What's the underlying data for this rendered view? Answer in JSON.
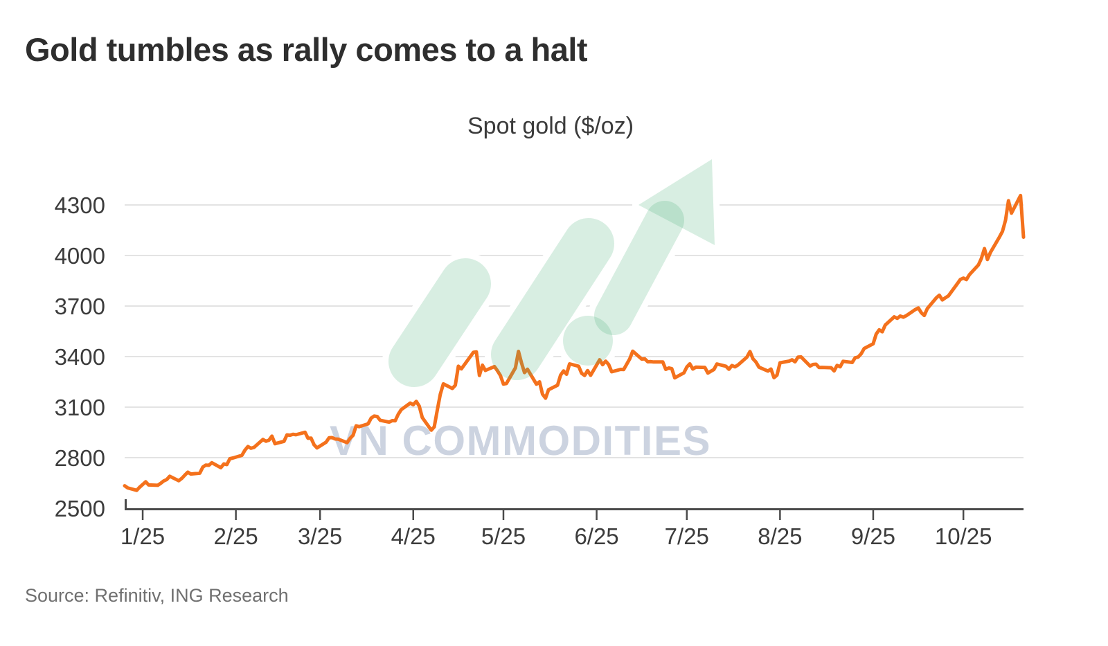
{
  "header": {
    "title": "Gold tumbles as rally comes to a halt"
  },
  "chart": {
    "subtitle": "Spot gold ($/oz)",
    "source": "Source: Refinitiv, ING Research",
    "watermark_text": "VN COMMODITIES",
    "watermark_logo": "rising-trend-arrow-icon",
    "colors": {
      "line": "#f4711c",
      "gridline": "#e3e3e3",
      "axis": "#4a4a4a",
      "axis_label": "#3c3c3c",
      "title_text": "#2e2e2e",
      "subtitle_text": "#3b3b3b",
      "source_text": "#707070",
      "watermark_text_color": "#ccd3e0",
      "watermark_green_rgba": "rgba(78,178,123,0.22)",
      "background": "#ffffff"
    }
  },
  "chart_data": {
    "type": "line",
    "title": "Spot gold ($/oz)",
    "series_name": "Spot gold",
    "unit": "$/oz",
    "x_tick_labels": [
      "1/25",
      "2/25",
      "3/25",
      "4/25",
      "5/25",
      "6/25",
      "7/25",
      "8/25",
      "9/25",
      "10/25"
    ],
    "x_tick_days": [
      6,
      37,
      65,
      96,
      126,
      157,
      187,
      218,
      249,
      279
    ],
    "xlim_days": [
      0,
      299
    ],
    "y_ticks": [
      2500,
      2800,
      3100,
      3400,
      3700,
      4000,
      4300
    ],
    "ylim": [
      2500,
      4300
    ],
    "grid": "horizontal-only",
    "legend": "none",
    "points": [
      [
        0,
        2633
      ],
      [
        1,
        2621
      ],
      [
        4,
        2606
      ],
      [
        5,
        2625
      ],
      [
        7,
        2657
      ],
      [
        8,
        2638
      ],
      [
        11,
        2636
      ],
      [
        12,
        2648
      ],
      [
        13,
        2662
      ],
      [
        14,
        2670
      ],
      [
        15,
        2690
      ],
      [
        18,
        2663
      ],
      [
        19,
        2677
      ],
      [
        20,
        2696
      ],
      [
        21,
        2714
      ],
      [
        22,
        2703
      ],
      [
        25,
        2708
      ],
      [
        26,
        2744
      ],
      [
        27,
        2756
      ],
      [
        28,
        2755
      ],
      [
        29,
        2770
      ],
      [
        32,
        2741
      ],
      [
        33,
        2763
      ],
      [
        34,
        2759
      ],
      [
        35,
        2794
      ],
      [
        36,
        2798
      ],
      [
        39,
        2814
      ],
      [
        40,
        2844
      ],
      [
        41,
        2866
      ],
      [
        42,
        2856
      ],
      [
        43,
        2861
      ],
      [
        46,
        2908
      ],
      [
        47,
        2898
      ],
      [
        48,
        2904
      ],
      [
        49,
        2928
      ],
      [
        50,
        2883
      ],
      [
        53,
        2897
      ],
      [
        54,
        2935
      ],
      [
        55,
        2933
      ],
      [
        56,
        2939
      ],
      [
        57,
        2936
      ],
      [
        60,
        2951
      ],
      [
        61,
        2915
      ],
      [
        62,
        2916
      ],
      [
        63,
        2877
      ],
      [
        64,
        2858
      ],
      [
        67,
        2892
      ],
      [
        68,
        2918
      ],
      [
        69,
        2919
      ],
      [
        70,
        2911
      ],
      [
        71,
        2910
      ],
      [
        74,
        2889
      ],
      [
        75,
        2915
      ],
      [
        76,
        2933
      ],
      [
        77,
        2989
      ],
      [
        78,
        2984
      ],
      [
        81,
        3001
      ],
      [
        82,
        3035
      ],
      [
        83,
        3047
      ],
      [
        84,
        3044
      ],
      [
        85,
        3022
      ],
      [
        88,
        3011
      ],
      [
        89,
        3020
      ],
      [
        90,
        3019
      ],
      [
        91,
        3057
      ],
      [
        92,
        3085
      ],
      [
        95,
        3124
      ],
      [
        96,
        3114
      ],
      [
        97,
        3134
      ],
      [
        98,
        3106
      ],
      [
        99,
        3038
      ],
      [
        102,
        2963
      ],
      [
        103,
        2983
      ],
      [
        104,
        3083
      ],
      [
        105,
        3176
      ],
      [
        106,
        3238
      ],
      [
        109,
        3211
      ],
      [
        110,
        3230
      ],
      [
        111,
        3343
      ],
      [
        112,
        3327
      ],
      [
        116,
        3425
      ],
      [
        117,
        3428
      ],
      [
        118,
        3288
      ],
      [
        119,
        3349
      ],
      [
        120,
        3318
      ],
      [
        123,
        3341
      ],
      [
        124,
        3316
      ],
      [
        125,
        3288
      ],
      [
        126,
        3237
      ],
      [
        127,
        3240
      ],
      [
        130,
        3333
      ],
      [
        131,
        3431
      ],
      [
        132,
        3364
      ],
      [
        133,
        3305
      ],
      [
        134,
        3325
      ],
      [
        137,
        3236
      ],
      [
        138,
        3250
      ],
      [
        139,
        3177
      ],
      [
        140,
        3153
      ],
      [
        141,
        3203
      ],
      [
        144,
        3230
      ],
      [
        145,
        3290
      ],
      [
        146,
        3315
      ],
      [
        147,
        3295
      ],
      [
        148,
        3357
      ],
      [
        151,
        3343
      ],
      [
        152,
        3301
      ],
      [
        153,
        3288
      ],
      [
        154,
        3317
      ],
      [
        155,
        3289
      ],
      [
        158,
        3381
      ],
      [
        159,
        3352
      ],
      [
        160,
        3373
      ],
      [
        161,
        3353
      ],
      [
        162,
        3310
      ],
      [
        165,
        3324
      ],
      [
        166,
        3323
      ],
      [
        167,
        3355
      ],
      [
        168,
        3386
      ],
      [
        169,
        3432
      ],
      [
        172,
        3385
      ],
      [
        173,
        3387
      ],
      [
        174,
        3369
      ],
      [
        175,
        3370
      ],
      [
        176,
        3368
      ],
      [
        179,
        3368
      ],
      [
        180,
        3324
      ],
      [
        181,
        3332
      ],
      [
        182,
        3328
      ],
      [
        183,
        3274
      ],
      [
        186,
        3303
      ],
      [
        187,
        3338
      ],
      [
        188,
        3357
      ],
      [
        189,
        3326
      ],
      [
        190,
        3337
      ],
      [
        193,
        3336
      ],
      [
        194,
        3302
      ],
      [
        195,
        3313
      ],
      [
        196,
        3323
      ],
      [
        197,
        3356
      ],
      [
        200,
        3343
      ],
      [
        201,
        3325
      ],
      [
        202,
        3347
      ],
      [
        203,
        3339
      ],
      [
        204,
        3350
      ],
      [
        207,
        3397
      ],
      [
        208,
        3430
      ],
      [
        209,
        3387
      ],
      [
        210,
        3368
      ],
      [
        211,
        3337
      ],
      [
        214,
        3314
      ],
      [
        215,
        3326
      ],
      [
        216,
        3275
      ],
      [
        217,
        3290
      ],
      [
        218,
        3363
      ],
      [
        221,
        3373
      ],
      [
        222,
        3381
      ],
      [
        223,
        3369
      ],
      [
        224,
        3397
      ],
      [
        225,
        3398
      ],
      [
        228,
        3344
      ],
      [
        229,
        3353
      ],
      [
        230,
        3355
      ],
      [
        231,
        3335
      ],
      [
        232,
        3336
      ],
      [
        235,
        3334
      ],
      [
        236,
        3315
      ],
      [
        237,
        3348
      ],
      [
        238,
        3339
      ],
      [
        239,
        3372
      ],
      [
        242,
        3365
      ],
      [
        243,
        3393
      ],
      [
        244,
        3397
      ],
      [
        245,
        3417
      ],
      [
        246,
        3448
      ],
      [
        249,
        3476
      ],
      [
        250,
        3534
      ],
      [
        251,
        3559
      ],
      [
        252,
        3547
      ],
      [
        253,
        3587
      ],
      [
        256,
        3636
      ],
      [
        257,
        3627
      ],
      [
        258,
        3641
      ],
      [
        259,
        3634
      ],
      [
        260,
        3643
      ],
      [
        263,
        3679
      ],
      [
        264,
        3689
      ],
      [
        265,
        3660
      ],
      [
        266,
        3644
      ],
      [
        267,
        3685
      ],
      [
        270,
        3749
      ],
      [
        271,
        3764
      ],
      [
        272,
        3736
      ],
      [
        273,
        3749
      ],
      [
        274,
        3760
      ],
      [
        277,
        3833
      ],
      [
        278,
        3858
      ],
      [
        279,
        3866
      ],
      [
        280,
        3857
      ],
      [
        281,
        3886
      ],
      [
        284,
        3944
      ],
      [
        285,
        3983
      ],
      [
        286,
        4041
      ],
      [
        287,
        3976
      ],
      [
        288,
        4018
      ],
      [
        291,
        4110
      ],
      [
        292,
        4143
      ],
      [
        293,
        4209
      ],
      [
        294,
        4325
      ],
      [
        295,
        4251
      ],
      [
        298,
        4356
      ],
      [
        299,
        4109
      ]
    ]
  }
}
